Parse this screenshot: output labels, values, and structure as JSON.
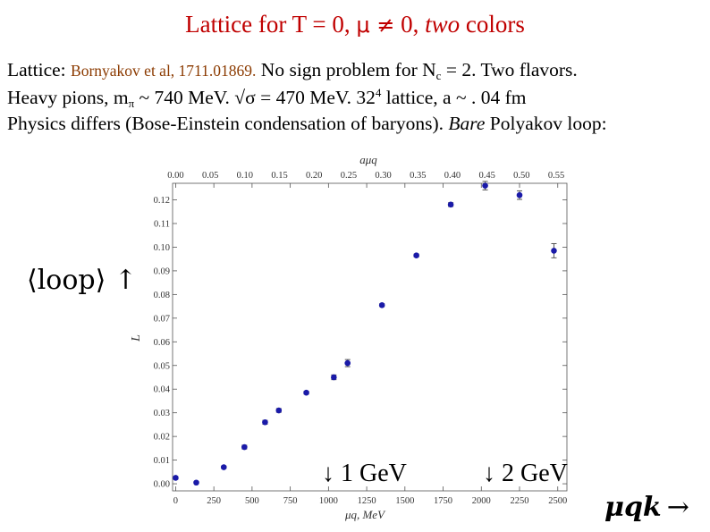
{
  "slide": {
    "title": {
      "part1": "Lattice for T = 0, ",
      "mu": "μ ≠",
      "part2": " 0, ",
      "italic": "two",
      "part3": " colors"
    },
    "line1": {
      "prefix": "Lattice: ",
      "citation": "Bornyakov et al, 1711.01869.",
      "text": "  No sign problem for N",
      "sub": "c",
      "suffix": " = 2.  Two flavors."
    },
    "line2": {
      "prefix": "Heavy pions, m",
      "sub": "π",
      "mid": " ~ 740 MeV.  √σ = 470 MeV.  32",
      "sup": "4",
      "suffix": " lattice, a ~ . 04 fm"
    },
    "line3": {
      "prefix": "Physics differs (Bose-Einstein condensation of baryons). ",
      "italic": "Bare",
      "suffix": " Polyakov loop:"
    },
    "annotations": {
      "loop": "⟨loop⟩ ↑",
      "mu_label": "μqk",
      "mu_arrow": "→",
      "gev1": "↓ 1 GeV",
      "gev2": "↓ 2 GeV"
    }
  },
  "chart_data": {
    "type": "scatter",
    "title": "",
    "xlabel": "μq, MeV",
    "ylabel": "L",
    "top_xlabel": "aμq",
    "xlim": [
      -20,
      2560
    ],
    "ylim": [
      -0.003,
      0.127
    ],
    "top_xlim": [
      -0.0045,
      0.5655
    ],
    "x_ticks": [
      0,
      250,
      500,
      750,
      1000,
      1250,
      1500,
      1750,
      2000,
      2250,
      2500
    ],
    "top_x_ticks": [
      "0.00",
      "0.05",
      "0.10",
      "0.15",
      "0.20",
      "0.25",
      "0.30",
      "0.35",
      "0.40",
      "0.45",
      "0.50",
      "0.55"
    ],
    "y_ticks": [
      "0.00",
      "0.01",
      "0.02",
      "0.03",
      "0.04",
      "0.05",
      "0.06",
      "0.07",
      "0.08",
      "0.09",
      "0.10",
      "0.11",
      "0.12"
    ],
    "points": [
      {
        "x": 0,
        "y": 0.0025,
        "err": 0.0005
      },
      {
        "x": 135,
        "y": 0.0005,
        "err": 0.0004
      },
      {
        "x": 315,
        "y": 0.007,
        "err": 0.0005
      },
      {
        "x": 450,
        "y": 0.0155,
        "err": 0.0008
      },
      {
        "x": 585,
        "y": 0.026,
        "err": 0.0008
      },
      {
        "x": 675,
        "y": 0.031,
        "err": 0.0008
      },
      {
        "x": 855,
        "y": 0.0385,
        "err": 0.0006
      },
      {
        "x": 1035,
        "y": 0.045,
        "err": 0.001
      },
      {
        "x": 1125,
        "y": 0.051,
        "err": 0.0015
      },
      {
        "x": 1350,
        "y": 0.0755,
        "err": 0.0006
      },
      {
        "x": 1575,
        "y": 0.0965,
        "err": 0.0006
      },
      {
        "x": 1800,
        "y": 0.118,
        "err": 0.0008
      },
      {
        "x": 2025,
        "y": 0.126,
        "err": 0.0018
      },
      {
        "x": 2250,
        "y": 0.122,
        "err": 0.0018
      },
      {
        "x": 2475,
        "y": 0.0985,
        "err": 0.003
      }
    ],
    "marker_color": "#1a1aa8"
  }
}
